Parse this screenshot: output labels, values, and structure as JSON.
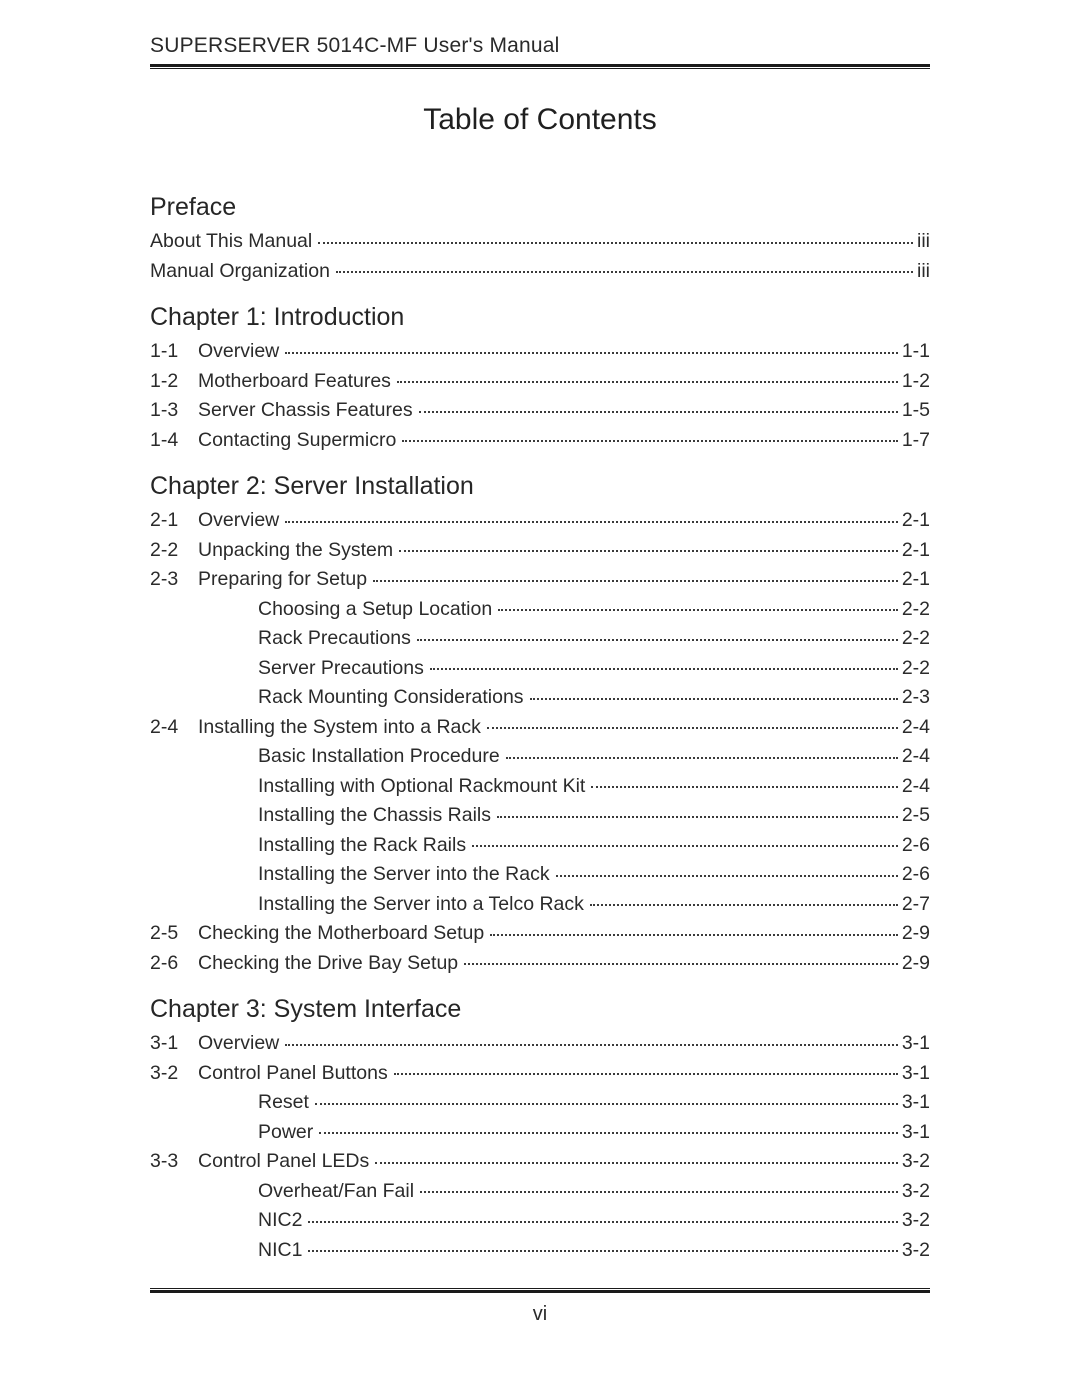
{
  "header": "SUPERSERVER 5014C-MF User's Manual",
  "title": "Table of Contents",
  "footer_page": "vi",
  "sections": {
    "preface": {
      "heading": "Preface",
      "rows": [
        {
          "num": "",
          "label": "About This Manual",
          "page": "iii",
          "indented": false
        },
        {
          "num": "",
          "label": "Manual Organization",
          "page": "iii",
          "indented": false
        }
      ]
    },
    "ch1": {
      "heading": "Chapter 1: Introduction",
      "rows": [
        {
          "num": "1-1",
          "label": "Overview",
          "page": "1-1",
          "indented": false
        },
        {
          "num": "1-2",
          "label": "Motherboard Features",
          "page": "1-2",
          "indented": false
        },
        {
          "num": "1-3",
          "label": "Server Chassis Features",
          "page": "1-5",
          "indented": false
        },
        {
          "num": "1-4",
          "label": "Contacting Supermicro",
          "page": "1-7",
          "indented": false
        }
      ]
    },
    "ch2": {
      "heading": "Chapter 2: Server Installation",
      "rows": [
        {
          "num": "2-1",
          "label": "Overview",
          "page": "2-1",
          "indented": false
        },
        {
          "num": "2-2",
          "label": "Unpacking the System",
          "page": "2-1",
          "indented": false
        },
        {
          "num": "2-3",
          "label": "Preparing for Setup",
          "page": "2-1",
          "indented": false
        },
        {
          "num": "",
          "label": "Choosing a Setup Location",
          "page": "2-2",
          "indented": true
        },
        {
          "num": "",
          "label": "Rack Precautions",
          "page": "2-2",
          "indented": true
        },
        {
          "num": "",
          "label": "Server Precautions",
          "page": "2-2",
          "indented": true
        },
        {
          "num": "",
          "label": "Rack Mounting Considerations",
          "page": "2-3",
          "indented": true
        },
        {
          "num": "2-4",
          "label": "Installing the System into a Rack",
          "page": "2-4",
          "indented": false
        },
        {
          "num": "",
          "label": "Basic Installation Procedure",
          "page": "2-4",
          "indented": true
        },
        {
          "num": "",
          "label": "Installing with Optional Rackmount Kit",
          "page": "2-4",
          "indented": true
        },
        {
          "num": "",
          "label": "Installing the Chassis Rails",
          "page": "2-5",
          "indented": true
        },
        {
          "num": "",
          "label": "Installing the Rack Rails",
          "page": "2-6",
          "indented": true
        },
        {
          "num": "",
          "label": "Installing the Server into the Rack",
          "page": "2-6",
          "indented": true
        },
        {
          "num": "",
          "label": "Installing the Server into a Telco Rack",
          "page": "2-7",
          "indented": true
        },
        {
          "num": "2-5",
          "label": "Checking the Motherboard Setup",
          "page": "2-9",
          "indented": false
        },
        {
          "num": "2-6",
          "label": "Checking the Drive Bay Setup",
          "page": "2-9",
          "indented": false
        }
      ]
    },
    "ch3": {
      "heading": "Chapter 3: System Interface",
      "rows": [
        {
          "num": "3-1",
          "label": "Overview",
          "page": "3-1",
          "indented": false
        },
        {
          "num": "3-2",
          "label": "Control Panel Buttons",
          "page": "3-1",
          "indented": false
        },
        {
          "num": "",
          "label": "Reset",
          "page": "3-1",
          "indented": true
        },
        {
          "num": "",
          "label": "Power",
          "page": "3-1",
          "indented": true
        },
        {
          "num": "3-3",
          "label": "Control Panel LEDs",
          "page": "3-2",
          "indented": false
        },
        {
          "num": "",
          "label": "Overheat/Fan Fail",
          "page": "3-2",
          "indented": true
        },
        {
          "num": "",
          "label": "NIC2",
          "page": "3-2",
          "indented": true
        },
        {
          "num": "",
          "label": "NIC1",
          "page": "3-2",
          "indented": true
        }
      ]
    }
  }
}
